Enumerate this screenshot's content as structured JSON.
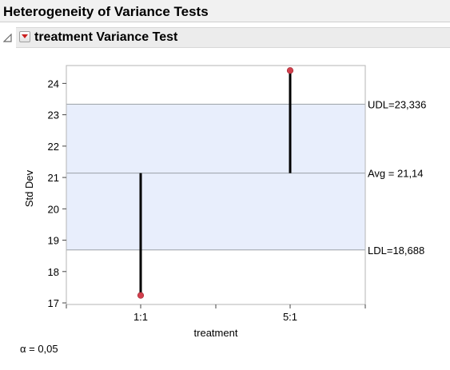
{
  "report": {
    "title": "Heterogeneity of Variance Tests",
    "section_title": "treatment Variance Test",
    "alpha_label": "α = 0,05"
  },
  "colors": {
    "band": "#e8eefc",
    "grid": "#9aa0a6",
    "point": "#d2404d",
    "line": "#000000"
  },
  "chart_data": {
    "type": "scatter",
    "title": "",
    "xlabel": "treatment",
    "ylabel": "Std Dev",
    "categories": [
      "1:1",
      "5:1"
    ],
    "values": [
      17.24,
      24.41
    ],
    "ylim": [
      16.95,
      24.57
    ],
    "yticks": [
      17,
      18,
      19,
      20,
      21,
      22,
      23,
      24
    ],
    "avg": 21.14,
    "udl": 23.336,
    "ldl": 18.688,
    "limit_labels": {
      "udl": "UDL=23,336",
      "avg": "Avg = 21,14",
      "ldl": "LDL=18,688"
    },
    "shaded_band": "between LDL and UDL",
    "grid": false,
    "legend": "none"
  }
}
